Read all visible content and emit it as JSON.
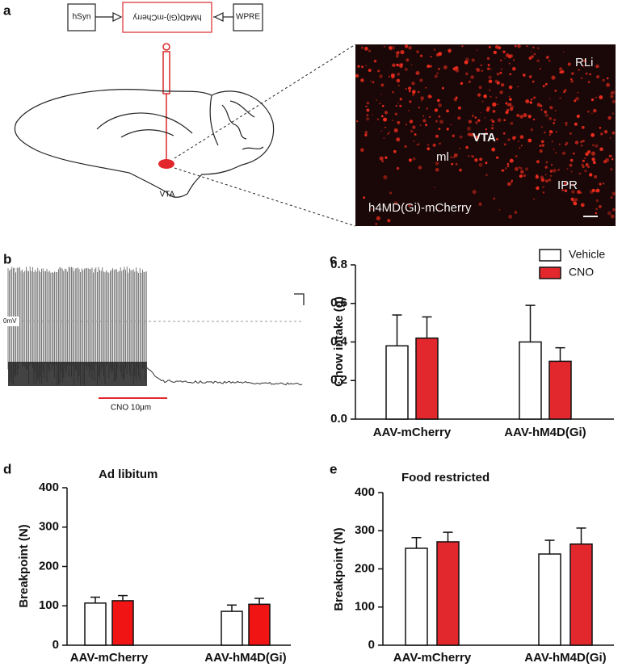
{
  "panel_labels": [
    "a",
    "b",
    "c",
    "d",
    "e"
  ],
  "construct": {
    "promoter": "hSyn",
    "insert": "hM4D(Gi)-mCherry",
    "element": "WPRE"
  },
  "brain_label": "VTA",
  "micrograph": {
    "labels": [
      "RLi",
      "VTA",
      "ml",
      "IPR",
      "h4MD(Gi)-mCherry"
    ]
  },
  "trace": {
    "zero_label": "0mV",
    "drug_label": "CNO 10μm"
  },
  "chart_data": [
    {
      "type": "bar",
      "y_label": "Chow intake (g)",
      "categories": [
        "AAV-mCherry",
        "AAV-hM4D(Gi)"
      ],
      "series": [
        {
          "name": "Vehicle",
          "color": "#ffffff",
          "values": [
            0.38,
            0.4
          ],
          "errors": [
            0.16,
            0.19
          ]
        },
        {
          "name": "CNO",
          "color": "#e2282c",
          "values": [
            0.42,
            0.3
          ],
          "errors": [
            0.11,
            0.07
          ]
        }
      ],
      "ylim": [
        0,
        0.8
      ],
      "yticks": [
        {
          "value": 0,
          "label": "0.0"
        },
        0.2,
        0.4,
        0.6,
        0.8
      ],
      "legend": "upper right"
    },
    {
      "type": "bar",
      "title": "Ad libitum",
      "y_label": "Breakpoint (N)",
      "categories": [
        "AAV-mCherry",
        "AAV-hM4D(Gi)"
      ],
      "series": [
        {
          "color": "#ffffff",
          "values": [
            107,
            86
          ],
          "errors": [
            15,
            16
          ]
        },
        {
          "color": "#f01414",
          "values": [
            113,
            104
          ],
          "errors": [
            13,
            15
          ]
        }
      ],
      "ylim": [
        0,
        400
      ],
      "yticks": [
        0,
        100,
        200,
        300,
        400
      ]
    },
    {
      "type": "bar",
      "title": "Food restricted",
      "y_label": "Breakpoint (N)",
      "categories": [
        "AAV-mCherry",
        "AAV-hM4D(Gi)"
      ],
      "series": [
        {
          "color": "#ffffff",
          "values": [
            254,
            239
          ],
          "errors": [
            28,
            36
          ]
        },
        {
          "color": "#e2282c",
          "values": [
            271,
            265
          ],
          "errors": [
            25,
            42
          ]
        }
      ],
      "ylim": [
        0,
        400
      ],
      "yticks": [
        0,
        100,
        200,
        300,
        400
      ]
    }
  ]
}
